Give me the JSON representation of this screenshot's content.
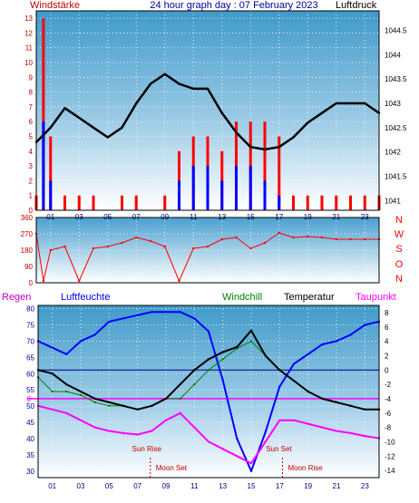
{
  "title": "24 hour graph day : 07 February 2023",
  "x_ticks": [
    "01",
    "03",
    "05",
    "07",
    "09",
    "11",
    "13",
    "15",
    "17",
    "19",
    "21",
    "23"
  ],
  "colors": {
    "wind": "#ff0000",
    "gust": "#0000ff",
    "pressure": "#000000",
    "direction": "#ff0000",
    "humidity": "#0000ff",
    "temperature": "#000000",
    "windchill": "#008000",
    "dewpoint": "#ff00ff",
    "zero_line": "#ff00ff",
    "axis_text_left": "#c00000",
    "axis_text_right": "#000000"
  },
  "chart_data": [
    {
      "type": "line",
      "panel": "wind-pressure",
      "left_axis_title": "Windstärke",
      "right_axis_title": "Luftdruck",
      "left_ticks": [
        "0",
        "1",
        "2",
        "3",
        "4",
        "5",
        "6",
        "7",
        "8",
        "9",
        "10",
        "11",
        "12",
        "13"
      ],
      "right_ticks": [
        "1041",
        "1041.5",
        "1042",
        "1042.5",
        "1043",
        "1043.5",
        "1044",
        "1044.5"
      ],
      "left_ylim": [
        0,
        13.5
      ],
      "right_ylim": [
        1040.8,
        1044.9
      ],
      "xlim": [
        0,
        24
      ],
      "pressure": {
        "x": [
          0,
          1,
          2,
          3,
          4,
          5,
          6,
          7,
          8,
          9,
          10,
          11,
          12,
          13,
          14,
          15,
          16,
          17,
          18,
          19,
          20,
          21,
          22,
          23,
          24
        ],
        "y": [
          1042.2,
          1042.5,
          1042.9,
          1042.7,
          1042.5,
          1042.3,
          1042.5,
          1043.0,
          1043.4,
          1043.6,
          1043.4,
          1043.3,
          1043.3,
          1042.8,
          1042.4,
          1042.1,
          1042.05,
          1042.1,
          1042.3,
          1042.6,
          1042.8,
          1043.0,
          1043.0,
          1043.0,
          1042.8
        ]
      },
      "wind": {
        "x": [
          0,
          0.5,
          1,
          2,
          3,
          4,
          5,
          6,
          7,
          8,
          9,
          10,
          11,
          12,
          13,
          14,
          15,
          16,
          17,
          18,
          19,
          20,
          21,
          22,
          23,
          24
        ],
        "y": [
          1,
          13,
          5,
          1,
          1,
          1,
          0,
          1,
          1,
          0,
          1,
          4,
          5,
          5,
          4,
          6,
          6,
          6,
          5,
          1,
          1,
          1,
          1,
          1,
          1,
          1
        ]
      },
      "gust": {
        "x": [
          0,
          0.5,
          1,
          2,
          3,
          4,
          5,
          6,
          7,
          8,
          9,
          10,
          11,
          12,
          13,
          14,
          15,
          16,
          17,
          18,
          19,
          20,
          21,
          22,
          23,
          24
        ],
        "y": [
          0,
          6,
          2,
          0,
          0,
          0,
          0,
          0,
          0,
          0,
          0,
          2,
          3,
          3,
          2,
          3,
          3,
          2,
          1,
          0,
          0,
          0,
          0,
          0,
          0,
          0
        ]
      }
    },
    {
      "type": "scatter",
      "panel": "wind-direction",
      "left_ticks": [
        "0",
        "90",
        "180",
        "270",
        "360"
      ],
      "right_labels": [
        "N",
        "W",
        "S",
        "O",
        "N"
      ],
      "ylim": [
        0,
        360
      ],
      "xlim": [
        0,
        24
      ],
      "direction": {
        "x": [
          0,
          0.5,
          1,
          2,
          3,
          4,
          5,
          6,
          7,
          8,
          9,
          10,
          11,
          12,
          13,
          14,
          15,
          16,
          17,
          18,
          19,
          20,
          21,
          22,
          23,
          24
        ],
        "y": [
          270,
          10,
          180,
          200,
          10,
          190,
          200,
          220,
          250,
          230,
          200,
          10,
          190,
          200,
          240,
          250,
          190,
          220,
          275,
          250,
          255,
          250,
          240,
          240,
          240,
          240
        ]
      }
    },
    {
      "type": "line",
      "panel": "temperature-humidity",
      "legend": [
        "Regen",
        "Luftfeuchte",
        "Windchill",
        "Temperatur",
        "Taupunkt"
      ],
      "left_ticks": [
        "30",
        "35",
        "40",
        "45",
        "50",
        "55",
        "60",
        "65",
        "70",
        "75",
        "80"
      ],
      "right_ticks": [
        "-14",
        "-12",
        "-10",
        "-8",
        "-6",
        "-4",
        "-2",
        "0",
        "2",
        "4",
        "6",
        "8"
      ],
      "left_ylim": [
        28,
        81
      ],
      "right_ylim": [
        -15,
        9
      ],
      "xlim": [
        0,
        24
      ],
      "rain_zero_label": "0",
      "humidity": {
        "x": [
          0,
          1,
          2,
          3,
          4,
          5,
          6,
          7,
          8,
          9,
          10,
          11,
          12,
          13,
          14,
          15,
          16,
          17,
          18,
          19,
          20,
          21,
          22,
          23,
          24
        ],
        "y": [
          70,
          68,
          66,
          70,
          72,
          76,
          77,
          78,
          79,
          79,
          79,
          77,
          73,
          58,
          40,
          30,
          42,
          56,
          63,
          66,
          69,
          70,
          72,
          75,
          76
        ]
      },
      "temperature": {
        "x": [
          0,
          1,
          2,
          3,
          4,
          5,
          6,
          7,
          8,
          9,
          10,
          11,
          12,
          13,
          14,
          15,
          16,
          17,
          18,
          19,
          20,
          21,
          22,
          23,
          24
        ],
        "y": [
          0,
          -0.5,
          -2,
          -3,
          -4,
          -4.5,
          -5,
          -5.5,
          -5,
          -4,
          -2,
          0,
          1.5,
          2.5,
          3.2,
          5.5,
          2,
          0,
          -1.5,
          -3,
          -4,
          -4.5,
          -5,
          -5.5,
          -5.5
        ]
      },
      "windchill": {
        "x": [
          0,
          1,
          2,
          3,
          4,
          5,
          6,
          7,
          8,
          9,
          10,
          11,
          12,
          13,
          14,
          15,
          16,
          17,
          18,
          19,
          20,
          21,
          22,
          23,
          24
        ],
        "y": [
          -1,
          -3,
          -3,
          -3.5,
          -4.5,
          -5,
          -5,
          -5.5,
          -5,
          -4,
          -4,
          -2,
          0,
          1.5,
          3,
          4,
          2,
          0,
          -1.5,
          -3,
          -4,
          -4.5,
          -5,
          -5.5,
          -5.5
        ]
      },
      "dewpoint": {
        "x": [
          0,
          1,
          2,
          3,
          4,
          5,
          6,
          7,
          8,
          9,
          10,
          11,
          12,
          13,
          14,
          15,
          16,
          17,
          18,
          19,
          20,
          21,
          22,
          23,
          24
        ],
        "y": [
          -5,
          -5.5,
          -6,
          -7,
          -8,
          -8.5,
          -8.8,
          -9,
          -8.5,
          -7,
          -6,
          -8,
          -10,
          -11,
          -12,
          -13,
          -10,
          -7,
          -7,
          -7.5,
          -8,
          -8.5,
          -8.8,
          -9.2,
          -9.5
        ]
      },
      "events": [
        {
          "label": "Sun Rise",
          "hour": 7.9,
          "color": "#c00000"
        },
        {
          "label": "Moon Set",
          "hour": 7.9,
          "color": "#c00000"
        },
        {
          "label": "Sun Set",
          "hour": 17.2,
          "color": "#c00000"
        },
        {
          "label": "Moon Rise",
          "hour": 17.2,
          "color": "#c00000"
        }
      ]
    }
  ]
}
